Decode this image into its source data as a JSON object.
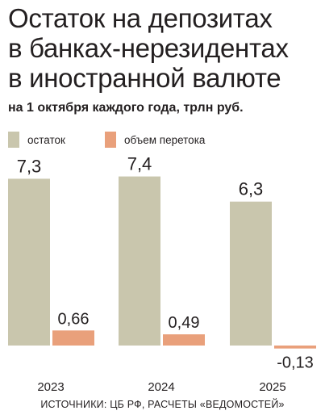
{
  "header": {
    "title_lines": [
      "Остаток на депозитах",
      "в банках-нерезидентах",
      "в иностранной валюте"
    ],
    "subtitle": "на 1 октября каждого года, трлн руб."
  },
  "legend": [
    {
      "label": "остаток",
      "color": "#c9c6ad"
    },
    {
      "label": "объем перетока",
      "color": "#e9a07b"
    }
  ],
  "chart_data": {
    "type": "bar",
    "categories": [
      "2023",
      "2024",
      "2025"
    ],
    "series": [
      {
        "name": "остаток",
        "values": [
          7.3,
          7.4,
          6.3
        ],
        "color": "#c9c6ad",
        "labels": [
          "7,3",
          "7,4",
          "6,3"
        ]
      },
      {
        "name": "объем перетока",
        "values": [
          0.66,
          0.49,
          -0.13
        ],
        "color": "#e9a07b",
        "labels": [
          "0,66",
          "0,49",
          "-0,13"
        ]
      }
    ],
    "title": "Остаток на депозитах в банках-нерезидентах в иностранной валюте",
    "subtitle": "на 1 октября каждого года, трлн руб.",
    "grid": false,
    "legend_position": "top-left"
  },
  "footer": {
    "source": "ИСТОЧНИКИ: ЦБ РФ, РАСЧЕТЫ «ВЕДОМОСТЕЙ»"
  }
}
